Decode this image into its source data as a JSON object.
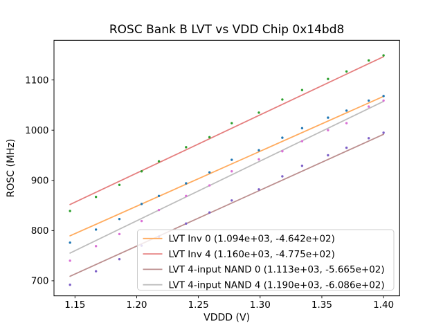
{
  "chart_data": {
    "type": "scatter",
    "title": "ROSC Bank B LVT vs VDD Chip 0x14bd8",
    "xlabel": "VDDD (V)",
    "ylabel": "ROSC (MHz)",
    "xlim": [
      1.133,
      1.413
    ],
    "ylim": [
      670,
      1179
    ],
    "grid": false,
    "legend_position": "lower right",
    "xticks": [
      {
        "v": 1.15,
        "label": "1.15"
      },
      {
        "v": 1.2,
        "label": "1.20"
      },
      {
        "v": 1.25,
        "label": "1.25"
      },
      {
        "v": 1.3,
        "label": "1.30"
      },
      {
        "v": 1.35,
        "label": "1.35"
      },
      {
        "v": 1.4,
        "label": "1.40"
      }
    ],
    "yticks": [
      {
        "v": 700,
        "label": "700"
      },
      {
        "v": 800,
        "label": "800"
      },
      {
        "v": 900,
        "label": "900"
      },
      {
        "v": 1000,
        "label": "1000"
      },
      {
        "v": 1100,
        "label": "1100"
      }
    ],
    "x": [
      1.146,
      1.167,
      1.186,
      1.204,
      1.218,
      1.24,
      1.259,
      1.277,
      1.299,
      1.318,
      1.334,
      1.355,
      1.37,
      1.388,
      1.4
    ],
    "series": [
      {
        "name": "LVT Inv 0",
        "legend_label": "LVT Inv 0 (1.094e+03, -4.642e+02)",
        "fit": {
          "slope": 1094.0,
          "intercept": -464.2
        },
        "line_color": "#ffab5e",
        "dot_color": "#1f77b4",
        "values": [
          776,
          802,
          823,
          853,
          869,
          894,
          916,
          941,
          960,
          985,
          1004,
          1025,
          1039,
          1059,
          1068
        ]
      },
      {
        "name": "LVT Inv 4",
        "legend_label": "LVT Inv 4 (1.160e+03, -4.775e+02)",
        "fit": {
          "slope": 1160.0,
          "intercept": -477.5
        },
        "line_color": "#e57f7f",
        "dot_color": "#2ca02c",
        "values": [
          839,
          867,
          891,
          918,
          938,
          966,
          986,
          1014,
          1035,
          1061,
          1080,
          1102,
          1117,
          1139,
          1149
        ]
      },
      {
        "name": "LVT 4-input NAND 0",
        "legend_label": "LVT 4-input NAND 0 (1.113e+03, -5.665e+02)",
        "fit": {
          "slope": 1113.0,
          "intercept": -566.5
        },
        "line_color": "#bc8f8f",
        "dot_color": "#7d5fc7",
        "values": [
          692,
          719,
          743,
          770,
          788,
          814,
          836,
          860,
          882,
          908,
          929,
          950,
          965,
          984,
          995
        ]
      },
      {
        "name": "LVT 4-input NAND 4",
        "legend_label": "LVT 4-input NAND 4 (1.190e+03, -6.086e+02)",
        "fit": {
          "slope": 1190.0,
          "intercept": -608.6
        },
        "line_color": "#bdbdbd",
        "dot_color": "#da70d6",
        "values": [
          740,
          769,
          793,
          819,
          841,
          869,
          890,
          918,
          942,
          958,
          978,
          1000,
          1014,
          1047,
          1059
        ]
      }
    ],
    "legend_border_color": "#cccccc"
  }
}
